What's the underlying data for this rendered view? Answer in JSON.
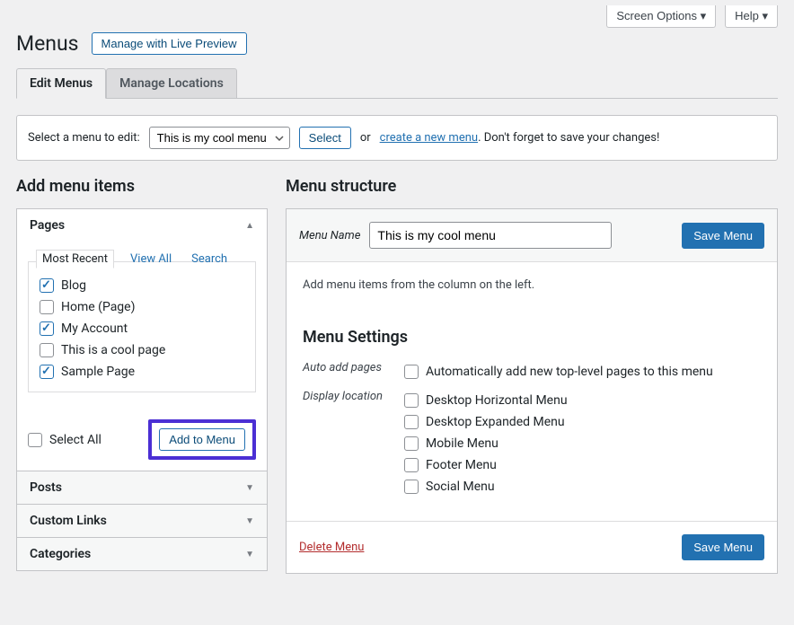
{
  "topbar": {
    "screen_options": "Screen Options ▾",
    "help": "Help ▾"
  },
  "header": {
    "title": "Menus",
    "live_preview_btn": "Manage with Live Preview"
  },
  "tabs": {
    "edit": "Edit Menus",
    "manage": "Manage Locations"
  },
  "select_bar": {
    "label": "Select a menu to edit:",
    "selected": "This is my cool menu",
    "select_btn": "Select",
    "or": "or",
    "create_link": "create a new menu",
    "trailer": ". Don't forget to save your changes!"
  },
  "left": {
    "heading": "Add menu items",
    "pages": {
      "title": "Pages",
      "subtabs": {
        "recent": "Most Recent",
        "view_all": "View All",
        "search": "Search"
      },
      "items": [
        {
          "label": "Blog",
          "checked": true
        },
        {
          "label": "Home (Page)",
          "checked": false
        },
        {
          "label": "My Account",
          "checked": true
        },
        {
          "label": "This is a cool page",
          "checked": false
        },
        {
          "label": "Sample Page",
          "checked": true
        }
      ],
      "select_all": "Select All",
      "add_btn": "Add to Menu"
    },
    "posts_title": "Posts",
    "custom_links_title": "Custom Links",
    "categories_title": "Categories"
  },
  "right": {
    "heading": "Menu structure",
    "name_label": "Menu Name",
    "name_value": "This is my cool menu",
    "save_btn": "Save Menu",
    "hint": "Add menu items from the column on the left.",
    "settings_heading": "Menu Settings",
    "auto_add_label": "Auto add pages",
    "auto_add_option": "Automatically add new top-level pages to this menu",
    "display_label": "Display location",
    "locations": [
      "Desktop Horizontal Menu",
      "Desktop Expanded Menu",
      "Mobile Menu",
      "Footer Menu",
      "Social Menu"
    ],
    "delete_link": "Delete Menu"
  }
}
